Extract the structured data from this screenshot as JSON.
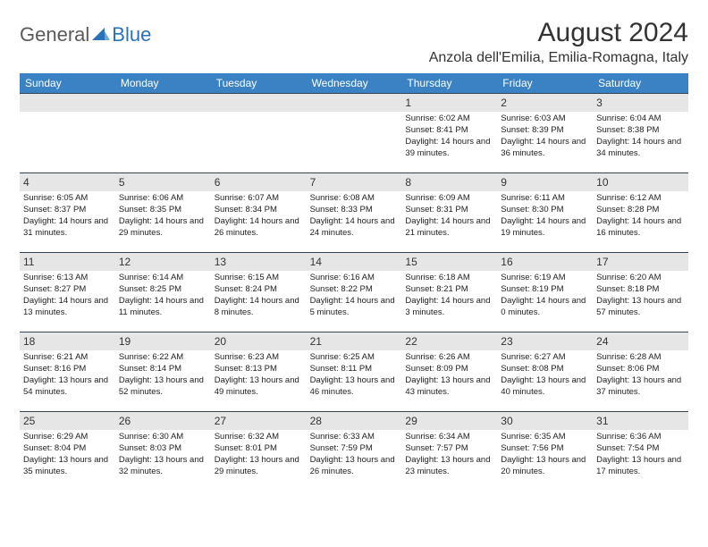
{
  "logo": {
    "text1": "General",
    "text2": "Blue"
  },
  "title": "August 2024",
  "location": "Anzola dell'Emilia, Emilia-Romagna, Italy",
  "colors": {
    "header_bg": "#3b82c4",
    "header_text": "#ffffff",
    "daynum_bg": "#e6e6e6",
    "border": "#334455",
    "logo_gray": "#5a5a5a",
    "logo_blue": "#2a72b5",
    "logo_icon": "#2a72b5"
  },
  "day_headers": [
    "Sunday",
    "Monday",
    "Tuesday",
    "Wednesday",
    "Thursday",
    "Friday",
    "Saturday"
  ],
  "grid": {
    "columns": 7,
    "leading_empty": 4
  },
  "days": [
    {
      "n": "1",
      "sunrise": "6:02 AM",
      "sunset": "8:41 PM",
      "daylight": "14 hours and 39 minutes."
    },
    {
      "n": "2",
      "sunrise": "6:03 AM",
      "sunset": "8:39 PM",
      "daylight": "14 hours and 36 minutes."
    },
    {
      "n": "3",
      "sunrise": "6:04 AM",
      "sunset": "8:38 PM",
      "daylight": "14 hours and 34 minutes."
    },
    {
      "n": "4",
      "sunrise": "6:05 AM",
      "sunset": "8:37 PM",
      "daylight": "14 hours and 31 minutes."
    },
    {
      "n": "5",
      "sunrise": "6:06 AM",
      "sunset": "8:35 PM",
      "daylight": "14 hours and 29 minutes."
    },
    {
      "n": "6",
      "sunrise": "6:07 AM",
      "sunset": "8:34 PM",
      "daylight": "14 hours and 26 minutes."
    },
    {
      "n": "7",
      "sunrise": "6:08 AM",
      "sunset": "8:33 PM",
      "daylight": "14 hours and 24 minutes."
    },
    {
      "n": "8",
      "sunrise": "6:09 AM",
      "sunset": "8:31 PM",
      "daylight": "14 hours and 21 minutes."
    },
    {
      "n": "9",
      "sunrise": "6:11 AM",
      "sunset": "8:30 PM",
      "daylight": "14 hours and 19 minutes."
    },
    {
      "n": "10",
      "sunrise": "6:12 AM",
      "sunset": "8:28 PM",
      "daylight": "14 hours and 16 minutes."
    },
    {
      "n": "11",
      "sunrise": "6:13 AM",
      "sunset": "8:27 PM",
      "daylight": "14 hours and 13 minutes."
    },
    {
      "n": "12",
      "sunrise": "6:14 AM",
      "sunset": "8:25 PM",
      "daylight": "14 hours and 11 minutes."
    },
    {
      "n": "13",
      "sunrise": "6:15 AM",
      "sunset": "8:24 PM",
      "daylight": "14 hours and 8 minutes."
    },
    {
      "n": "14",
      "sunrise": "6:16 AM",
      "sunset": "8:22 PM",
      "daylight": "14 hours and 5 minutes."
    },
    {
      "n": "15",
      "sunrise": "6:18 AM",
      "sunset": "8:21 PM",
      "daylight": "14 hours and 3 minutes."
    },
    {
      "n": "16",
      "sunrise": "6:19 AM",
      "sunset": "8:19 PM",
      "daylight": "14 hours and 0 minutes."
    },
    {
      "n": "17",
      "sunrise": "6:20 AM",
      "sunset": "8:18 PM",
      "daylight": "13 hours and 57 minutes."
    },
    {
      "n": "18",
      "sunrise": "6:21 AM",
      "sunset": "8:16 PM",
      "daylight": "13 hours and 54 minutes."
    },
    {
      "n": "19",
      "sunrise": "6:22 AM",
      "sunset": "8:14 PM",
      "daylight": "13 hours and 52 minutes."
    },
    {
      "n": "20",
      "sunrise": "6:23 AM",
      "sunset": "8:13 PM",
      "daylight": "13 hours and 49 minutes."
    },
    {
      "n": "21",
      "sunrise": "6:25 AM",
      "sunset": "8:11 PM",
      "daylight": "13 hours and 46 minutes."
    },
    {
      "n": "22",
      "sunrise": "6:26 AM",
      "sunset": "8:09 PM",
      "daylight": "13 hours and 43 minutes."
    },
    {
      "n": "23",
      "sunrise": "6:27 AM",
      "sunset": "8:08 PM",
      "daylight": "13 hours and 40 minutes."
    },
    {
      "n": "24",
      "sunrise": "6:28 AM",
      "sunset": "8:06 PM",
      "daylight": "13 hours and 37 minutes."
    },
    {
      "n": "25",
      "sunrise": "6:29 AM",
      "sunset": "8:04 PM",
      "daylight": "13 hours and 35 minutes."
    },
    {
      "n": "26",
      "sunrise": "6:30 AM",
      "sunset": "8:03 PM",
      "daylight": "13 hours and 32 minutes."
    },
    {
      "n": "27",
      "sunrise": "6:32 AM",
      "sunset": "8:01 PM",
      "daylight": "13 hours and 29 minutes."
    },
    {
      "n": "28",
      "sunrise": "6:33 AM",
      "sunset": "7:59 PM",
      "daylight": "13 hours and 26 minutes."
    },
    {
      "n": "29",
      "sunrise": "6:34 AM",
      "sunset": "7:57 PM",
      "daylight": "13 hours and 23 minutes."
    },
    {
      "n": "30",
      "sunrise": "6:35 AM",
      "sunset": "7:56 PM",
      "daylight": "13 hours and 20 minutes."
    },
    {
      "n": "31",
      "sunrise": "6:36 AM",
      "sunset": "7:54 PM",
      "daylight": "13 hours and 17 minutes."
    }
  ],
  "labels": {
    "sunrise": "Sunrise:",
    "sunset": "Sunset:",
    "daylight": "Daylight:"
  }
}
